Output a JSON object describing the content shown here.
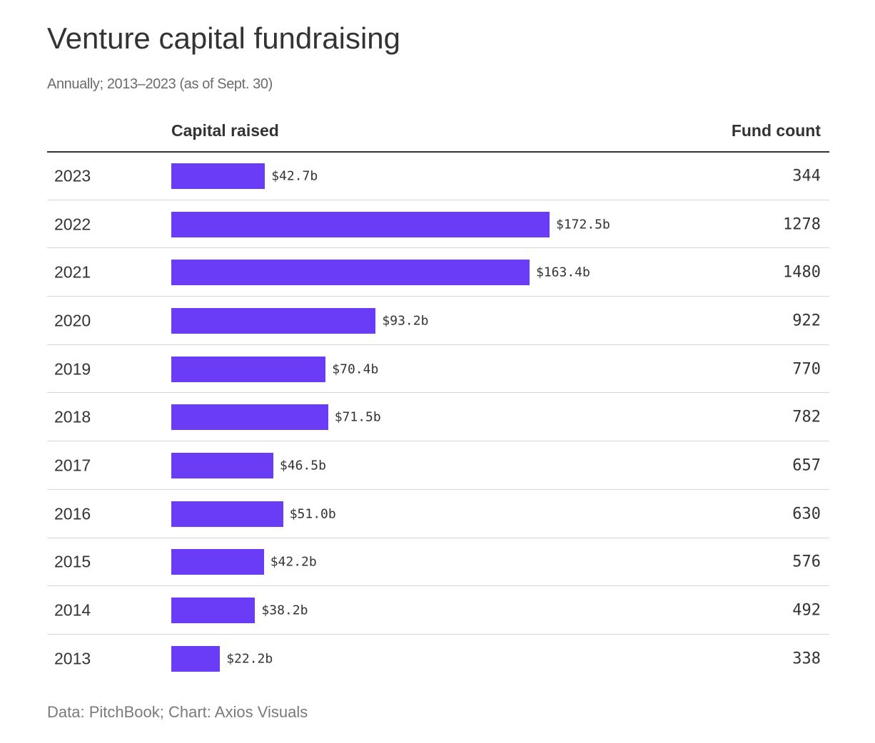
{
  "chart_data": {
    "type": "bar",
    "orientation": "horizontal",
    "title": "Venture capital fundraising",
    "subtitle": "Annually; 2013–2023 (as of Sept. 30)",
    "columns": {
      "category": "",
      "capital": "Capital raised",
      "count": "Fund count"
    },
    "unit_prefix": "$",
    "unit_suffix": "b",
    "categories": [
      "2023",
      "2022",
      "2021",
      "2020",
      "2019",
      "2018",
      "2017",
      "2016",
      "2015",
      "2014",
      "2013"
    ],
    "series": [
      {
        "name": "Capital raised",
        "values": [
          42.7,
          172.5,
          163.4,
          93.2,
          70.4,
          71.5,
          46.5,
          51.0,
          42.2,
          38.2,
          22.2
        ]
      },
      {
        "name": "Fund count",
        "values": [
          344,
          1278,
          1480,
          922,
          770,
          782,
          657,
          630,
          576,
          492,
          338
        ]
      }
    ],
    "xlim": [
      0,
      172.5
    ],
    "source": "Data: PitchBook; Chart: Axios Visuals"
  },
  "colors": {
    "bar": "#6a3cf6",
    "text": "#333333",
    "muted": "#6b6b6b",
    "rule": "#d6d6d6"
  }
}
